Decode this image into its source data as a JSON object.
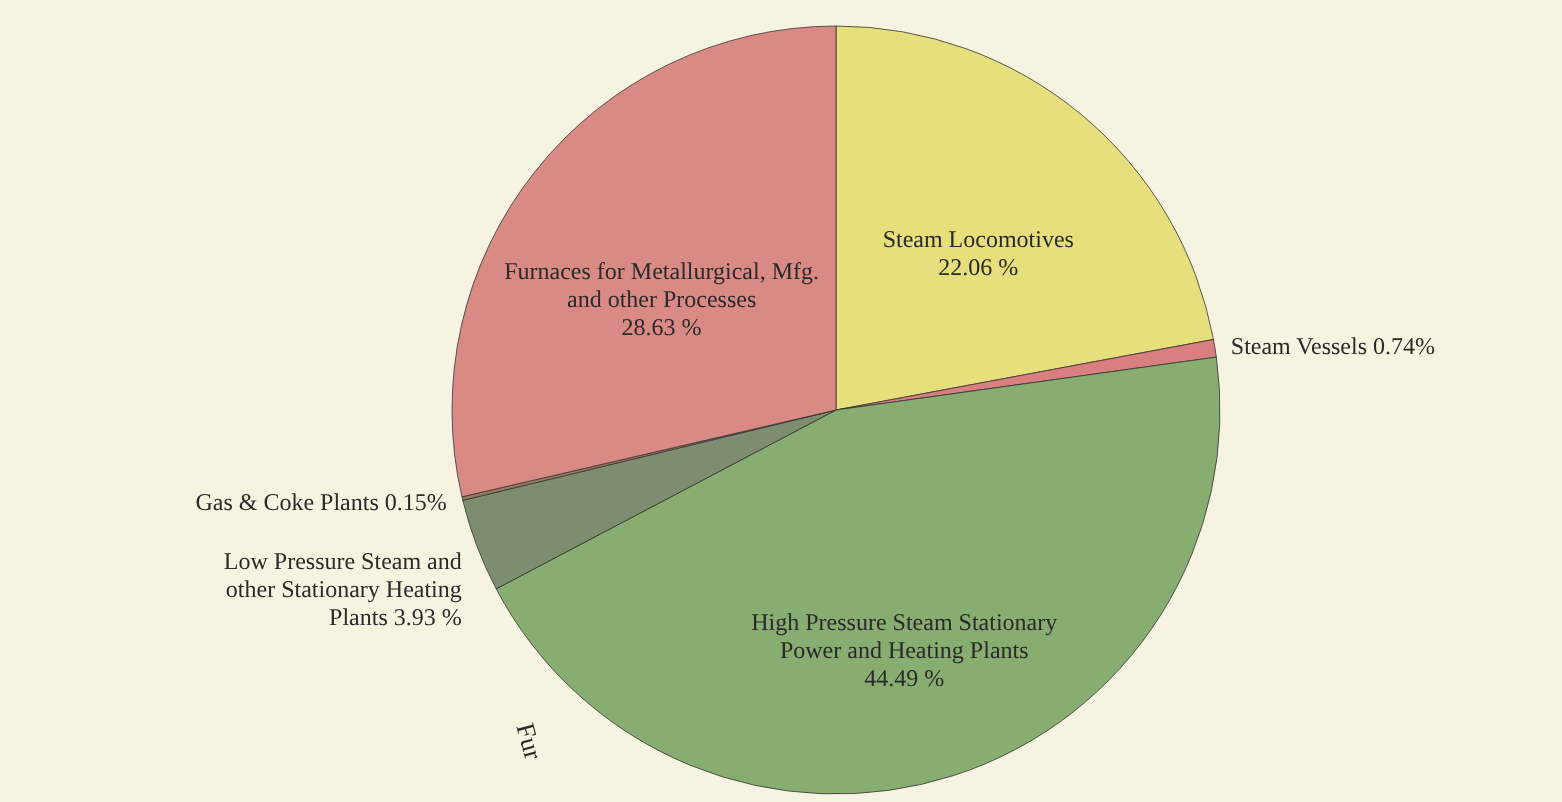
{
  "chart_data": {
    "type": "pie",
    "categories": [
      "Steam Locomotives",
      "Steam Vessels",
      "High Pressure Steam Stationary\nPower and Heating Plants",
      "Low Pressure Steam and\nother Stationary Heating\nPlants",
      "Gas & Coke Plants",
      "Furnaces for Metallurgical, Mfg.\nand other Processes"
    ],
    "values": [
      22.06,
      0.74,
      44.49,
      3.93,
      0.15,
      28.63
    ],
    "value_labels": [
      "22.06 %",
      "0.74%",
      "44.49 %",
      "3.93 %",
      "0.15%",
      "28.63 %"
    ],
    "colors": [
      "#e6df7c",
      "#d97f7f",
      "#87ad70",
      "#7e8c70",
      "#9a7a5c",
      "#da8a84"
    ],
    "annotations": [
      "Fur"
    ]
  }
}
